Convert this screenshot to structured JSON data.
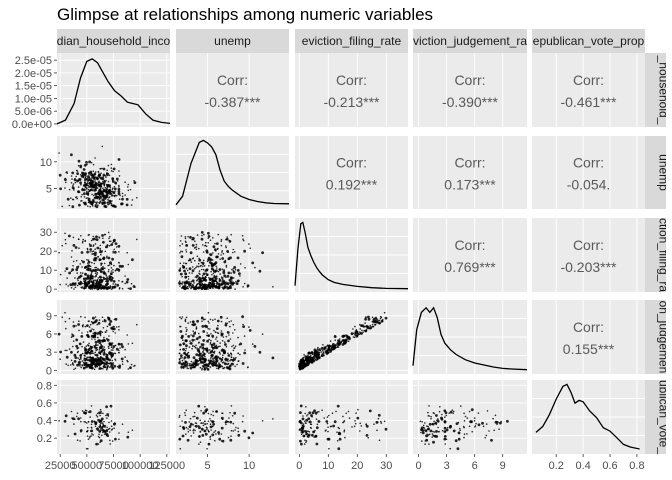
{
  "title": "Glimpse at relationships among numeric variables",
  "colors": {
    "panel_bg": "#ebebeb",
    "grid": "#ffffff",
    "strip_bg": "#d9d9d9",
    "corr_text": "#595959",
    "points": "#000000",
    "density_line": "#000000",
    "tick_text": "#4d4d4d"
  },
  "chart_data": {
    "type": "scatter",
    "layout": "pairs-matrix",
    "grid": true,
    "variables": [
      "median_household_income",
      "unemp",
      "eviction_filing_rate",
      "eviction_judgement_rate",
      "republican_vote_prop"
    ],
    "top_strip_labels": [
      "dian_household_inco",
      "unemp",
      "eviction_filing_rate",
      "viction_judgement_ra",
      "epublican_vote_prop"
    ],
    "right_strip_labels": [
      "_household_",
      "unemp",
      "ction_filing_ra",
      "on_judgemen",
      "ublican_vote_"
    ],
    "column_ticks": [
      [
        "25000",
        "50000",
        "75000",
        "100000",
        "125000"
      ],
      [
        "5",
        "10"
      ],
      [
        "0",
        "10",
        "20",
        "30"
      ],
      [
        "0",
        "3",
        "6",
        "9"
      ],
      [
        "0.2",
        "0.4",
        "0.6",
        "0.8"
      ]
    ],
    "row_ticks": [
      [
        "0.0e+00",
        "5.0e-06",
        "1.0e-05",
        "1.5e-05",
        "2.0e-05",
        "2.5e-05"
      ],
      [
        "5",
        "10"
      ],
      [
        "0",
        "10",
        "20",
        "30"
      ],
      [
        "0",
        "3",
        "6",
        "9"
      ],
      [
        "0.2",
        "0.4",
        "0.6",
        "0.8"
      ]
    ],
    "ranges": [
      [
        22000,
        128000
      ],
      [
        1.2,
        14.8
      ],
      [
        -1.5,
        37.5
      ],
      [
        -0.6,
        11.6
      ],
      [
        0.02,
        0.86
      ]
    ],
    "density_ylim": [
      -1.2e-06,
      2.78e-05
    ],
    "correlations": [
      {
        "row": 0,
        "col": 1,
        "label": "Corr:",
        "value": "-0.387***"
      },
      {
        "row": 0,
        "col": 2,
        "label": "Corr:",
        "value": "-0.213***"
      },
      {
        "row": 0,
        "col": 3,
        "label": "Corr:",
        "value": "-0.390***"
      },
      {
        "row": 0,
        "col": 4,
        "label": "Corr:",
        "value": "-0.461***"
      },
      {
        "row": 1,
        "col": 2,
        "label": "Corr:",
        "value": "0.192***"
      },
      {
        "row": 1,
        "col": 3,
        "label": "Corr:",
        "value": "0.173***"
      },
      {
        "row": 1,
        "col": 4,
        "label": "Corr:",
        "value": "-0.054."
      },
      {
        "row": 2,
        "col": 3,
        "label": "Corr:",
        "value": "0.769***"
      },
      {
        "row": 2,
        "col": 4,
        "label": "Corr:",
        "value": "-0.203***"
      },
      {
        "row": 3,
        "col": 4,
        "label": "Corr:",
        "value": "0.155***"
      }
    ],
    "densities": [
      {
        "x": [
          22000,
          30000,
          38000,
          44000,
          50000,
          55000,
          60000,
          64000,
          70000,
          76000,
          82000,
          88000,
          93000,
          98000,
          105000,
          112000,
          120000,
          128000
        ],
        "y": [
          0,
          1.5e-06,
          8e-06,
          1.8e-05,
          2.45e-05,
          2.55e-05,
          2.4e-05,
          2.1e-05,
          1.65e-05,
          1.3e-05,
          1.1e-05,
          8.5e-06,
          8e-06,
          7.5e-06,
          4e-06,
          1.5e-06,
          6e-07,
          2e-07
        ]
      },
      {
        "x": [
          1.2,
          2,
          3,
          4,
          4.5,
          5,
          5.5,
          6,
          6.5,
          7,
          7.5,
          8,
          9,
          10,
          11,
          12,
          13,
          14.8
        ],
        "y": [
          0.02,
          0.15,
          0.65,
          0.97,
          1.0,
          0.96,
          0.9,
          0.78,
          0.55,
          0.38,
          0.3,
          0.24,
          0.15,
          0.1,
          0.07,
          0.05,
          0.04,
          0.035
        ]
      },
      {
        "x": [
          -1.5,
          -0.5,
          0.5,
          1.2,
          2,
          3,
          4,
          5,
          6,
          7,
          8,
          10,
          12,
          15,
          20,
          25,
          30,
          37.5
        ],
        "y": [
          0.05,
          0.6,
          0.98,
          1.0,
          0.85,
          0.62,
          0.5,
          0.4,
          0.32,
          0.26,
          0.21,
          0.14,
          0.1,
          0.07,
          0.04,
          0.02,
          0.01,
          0.005
        ]
      },
      {
        "x": [
          -0.6,
          -0.2,
          0.3,
          0.8,
          1.2,
          1.6,
          2.0,
          2.4,
          2.8,
          3.4,
          4,
          5,
          6,
          7,
          8,
          9,
          10,
          11.6
        ],
        "y": [
          0.08,
          0.62,
          0.88,
          0.95,
          0.88,
          0.95,
          0.8,
          0.55,
          0.42,
          0.32,
          0.25,
          0.17,
          0.12,
          0.09,
          0.06,
          0.04,
          0.03,
          0.02
        ]
      },
      {
        "x": [
          0.05,
          0.1,
          0.15,
          0.2,
          0.25,
          0.28,
          0.31,
          0.34,
          0.37,
          0.4,
          0.45,
          0.5,
          0.55,
          0.6,
          0.65,
          0.7,
          0.75,
          0.82
        ],
        "y": [
          0.28,
          0.37,
          0.55,
          0.78,
          0.97,
          1.0,
          0.88,
          0.72,
          0.76,
          0.74,
          0.6,
          0.5,
          0.35,
          0.3,
          0.2,
          0.1,
          0.06,
          0.03
        ]
      }
    ]
  }
}
